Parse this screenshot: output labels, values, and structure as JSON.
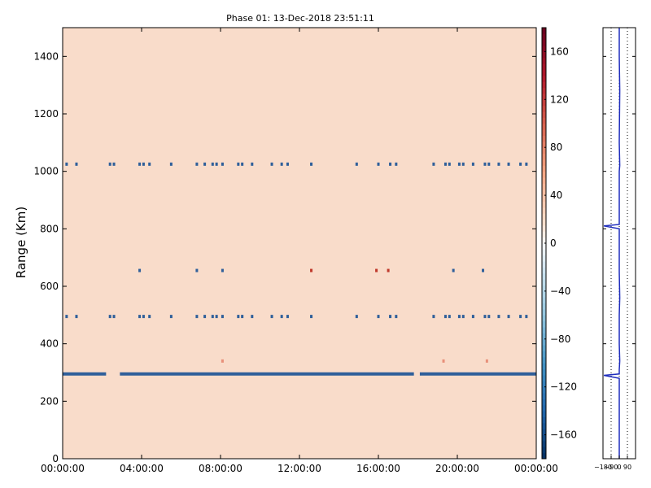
{
  "title": "Phase 01: 13-Dec-2018 23:51:11",
  "colors": {
    "background_field": "#f9dcca",
    "stripe_blue": "#2f5f9a",
    "stripe_red": "#c0392b",
    "profile_line": "#1f2dbd"
  },
  "chart_data": [
    {
      "type": "heatmap",
      "title": "Phase 01: 13-Dec-2018 23:51:11",
      "xlabel": "",
      "ylabel": "Range (Km)",
      "ylim": [
        0,
        1500
      ],
      "y_ticks": [
        0,
        200,
        400,
        600,
        800,
        1000,
        1200,
        1400
      ],
      "y_tick_labels": [
        "0",
        "200",
        "400",
        "600",
        "800",
        "1000",
        "1200",
        "1400"
      ],
      "xlim": [
        0,
        24
      ],
      "x_ticks": [
        0,
        4,
        8,
        12,
        16,
        20,
        24
      ],
      "x_tick_labels": [
        "00:00:00",
        "04:00:00",
        "08:00:00",
        "12:00:00",
        "16:00:00",
        "20:00:00",
        "00:00:00"
      ],
      "colorbar": {
        "range": [
          -180,
          180
        ],
        "ticks": [
          160,
          120,
          80,
          40,
          0,
          -40,
          -80,
          -120,
          -160
        ],
        "tick_labels": [
          "160",
          "120",
          "80",
          "40",
          "0",
          "−40",
          "−80",
          "−120",
          "−160"
        ],
        "colormap": "RdBu_r"
      },
      "rows": [
        {
          "range_km": 295,
          "value": -160,
          "x_start": 0,
          "x_end": 24,
          "gaps": [
            {
              "x_start": 2.2,
              "x_end": 2.9
            },
            {
              "x_start": 17.8,
              "x_end": 18.1
            }
          ]
        },
        {
          "range_km": 1025,
          "value": -150,
          "x": [
            0.2,
            0.7,
            2.4,
            2.6,
            3.9,
            4.1,
            4.4,
            5.5,
            6.8,
            7.2,
            7.6,
            7.8,
            8.1,
            8.9,
            9.1,
            9.6,
            10.6,
            11.1,
            11.4,
            12.6,
            14.9,
            16.0,
            16.6,
            16.9,
            18.8,
            19.4,
            19.6,
            20.1,
            20.3,
            20.8,
            21.4,
            21.6,
            22.1,
            22.6,
            23.2,
            23.5
          ]
        },
        {
          "range_km": 655,
          "value": -150,
          "x": [
            3.9,
            6.8,
            8.1,
            19.8,
            21.3
          ]
        },
        {
          "range_km": 655,
          "value": 140,
          "x": [
            12.6,
            15.9,
            16.5
          ]
        },
        {
          "range_km": 495,
          "value": -150,
          "x": [
            0.2,
            0.7,
            2.4,
            2.6,
            3.9,
            4.1,
            4.4,
            5.5,
            6.8,
            7.2,
            7.6,
            7.8,
            8.1,
            8.9,
            9.1,
            9.6,
            10.6,
            11.1,
            11.4,
            12.6,
            14.9,
            16.0,
            16.6,
            16.9,
            18.8,
            19.4,
            19.6,
            20.1,
            20.3,
            20.8,
            21.4,
            21.6,
            22.1,
            22.6,
            23.2,
            23.5
          ]
        },
        {
          "range_km": 340,
          "value": 100,
          "x": [
            8.1,
            19.3,
            21.5
          ]
        }
      ]
    },
    {
      "type": "line",
      "xlim": [
        -180,
        180
      ],
      "x_tick_labels": [
        "−180",
        "−90",
        "0",
        "90"
      ],
      "ylim": [
        0,
        1500
      ],
      "series": [
        {
          "points": [
            {
              "x": 0,
              "y": 0
            },
            {
              "x": 0,
              "y": 280
            },
            {
              "x": -170,
              "y": 290
            },
            {
              "x": 0,
              "y": 295
            },
            {
              "x": 0,
              "y": 310
            },
            {
              "x": 5,
              "y": 340
            },
            {
              "x": 0,
              "y": 400
            },
            {
              "x": 0,
              "y": 500
            },
            {
              "x": 5,
              "y": 560
            },
            {
              "x": 0,
              "y": 650
            },
            {
              "x": 0,
              "y": 800
            },
            {
              "x": -170,
              "y": 810
            },
            {
              "x": 0,
              "y": 815
            },
            {
              "x": 0,
              "y": 1000
            },
            {
              "x": 5,
              "y": 1020
            },
            {
              "x": 0,
              "y": 1100
            },
            {
              "x": 5,
              "y": 1280
            },
            {
              "x": 0,
              "y": 1400
            },
            {
              "x": 0,
              "y": 1500
            }
          ]
        }
      ]
    }
  ]
}
